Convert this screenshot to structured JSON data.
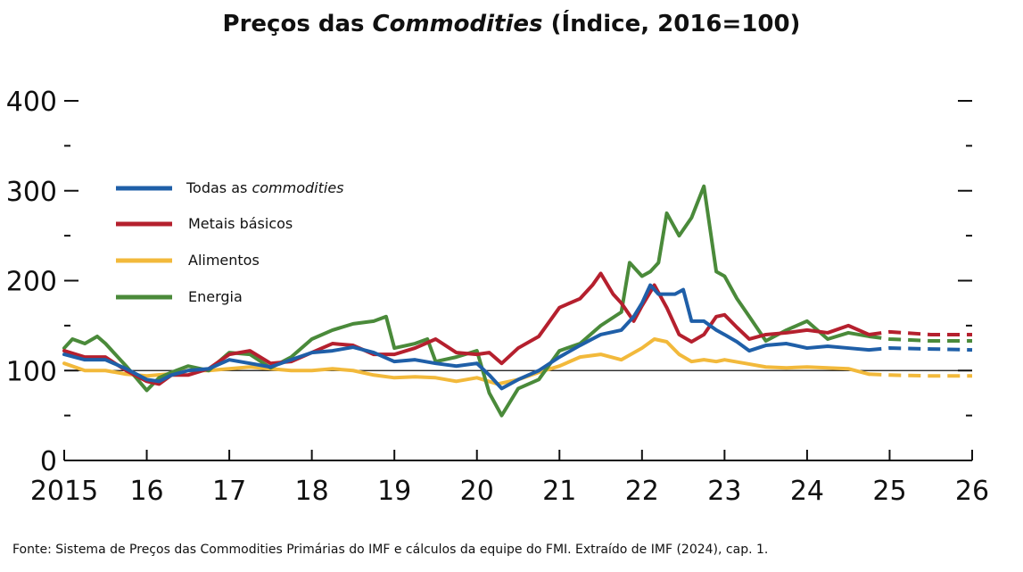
{
  "title": {
    "prefix": "Preços das ",
    "italic": "Commodities",
    "suffix": " (Índice, 2016=100)"
  },
  "source": "Fonte: Sistema de Preços das Commodities Primárias do IMF e cálculos da equipe do FMI. Extraído de IMF (2024), cap. 1.",
  "colors": {
    "todas": "#1f5fa8",
    "metais": "#b5202e",
    "alimentos": "#f2b93b",
    "energia": "#4a8a3a"
  },
  "chart_data": {
    "type": "line",
    "title": "Preços das Commodities (Índice, 2016=100)",
    "xlabel": "",
    "ylabel": "",
    "xlim": [
      2015,
      2026
    ],
    "ylim": [
      0,
      400
    ],
    "y_ticks": [
      "0",
      "100",
      "200",
      "300",
      "400"
    ],
    "x_ticks": [
      "2015",
      "16",
      "17",
      "18",
      "19",
      "20",
      "21",
      "22",
      "23",
      "24",
      "25",
      "26"
    ],
    "reference_line": 100,
    "legend_position": "upper-left",
    "projection_start": 2024.75,
    "series": [
      {
        "key": "todas",
        "name_plain": "Todas as ",
        "name_italic": "commodities",
        "name": "Todas as commodities",
        "x": [
          2015.0,
          2015.25,
          2015.5,
          2015.75,
          2016.0,
          2016.15,
          2016.3,
          2016.5,
          2016.75,
          2017.0,
          2017.25,
          2017.5,
          2017.75,
          2018.0,
          2018.25,
          2018.5,
          2018.75,
          2019.0,
          2019.25,
          2019.5,
          2019.75,
          2020.0,
          2020.15,
          2020.3,
          2020.5,
          2020.75,
          2021.0,
          2021.25,
          2021.5,
          2021.75,
          2021.9,
          2022.0,
          2022.1,
          2022.2,
          2022.3,
          2022.4,
          2022.5,
          2022.6,
          2022.75,
          2022.9,
          2023.0,
          2023.15,
          2023.3,
          2023.5,
          2023.75,
          2024.0,
          2024.25,
          2024.5,
          2024.75,
          2025.0,
          2025.5,
          2026.0
        ],
        "y": [
          118,
          112,
          112,
          102,
          90,
          88,
          95,
          100,
          102,
          112,
          108,
          104,
          112,
          120,
          122,
          126,
          120,
          110,
          112,
          108,
          105,
          108,
          95,
          80,
          90,
          100,
          115,
          128,
          140,
          145,
          160,
          175,
          195,
          185,
          185,
          185,
          190,
          155,
          155,
          145,
          140,
          132,
          122,
          128,
          130,
          125,
          127,
          125,
          123,
          125,
          124,
          123
        ],
        "projected_from_index": 48
      },
      {
        "key": "metais",
        "name": "Metais básicos",
        "x": [
          2015.0,
          2015.25,
          2015.5,
          2015.75,
          2016.0,
          2016.15,
          2016.3,
          2016.5,
          2016.75,
          2017.0,
          2017.25,
          2017.5,
          2017.75,
          2018.0,
          2018.25,
          2018.5,
          2018.75,
          2019.0,
          2019.25,
          2019.5,
          2019.75,
          2020.0,
          2020.15,
          2020.3,
          2020.5,
          2020.75,
          2021.0,
          2021.25,
          2021.4,
          2021.5,
          2021.65,
          2021.75,
          2021.9,
          2022.0,
          2022.15,
          2022.3,
          2022.45,
          2022.6,
          2022.75,
          2022.9,
          2023.0,
          2023.15,
          2023.3,
          2023.5,
          2023.75,
          2024.0,
          2024.25,
          2024.5,
          2024.75,
          2025.0,
          2025.5,
          2026.0
        ],
        "y": [
          122,
          115,
          115,
          100,
          88,
          85,
          95,
          95,
          102,
          118,
          122,
          108,
          110,
          120,
          130,
          128,
          118,
          118,
          125,
          135,
          120,
          118,
          120,
          108,
          125,
          138,
          170,
          180,
          195,
          208,
          185,
          175,
          155,
          172,
          195,
          170,
          140,
          132,
          140,
          160,
          162,
          148,
          135,
          140,
          142,
          145,
          142,
          150,
          140,
          143,
          140,
          140
        ],
        "projected_from_index": 48
      },
      {
        "key": "alimentos",
        "name": "Alimentos",
        "x": [
          2015.0,
          2015.25,
          2015.5,
          2015.75,
          2016.0,
          2016.25,
          2016.5,
          2016.75,
          2017.0,
          2017.25,
          2017.5,
          2017.75,
          2018.0,
          2018.25,
          2018.5,
          2018.75,
          2019.0,
          2019.25,
          2019.5,
          2019.75,
          2020.0,
          2020.25,
          2020.5,
          2020.75,
          2021.0,
          2021.25,
          2021.5,
          2021.75,
          2022.0,
          2022.15,
          2022.3,
          2022.45,
          2022.6,
          2022.75,
          2022.9,
          2023.0,
          2023.25,
          2023.5,
          2023.75,
          2024.0,
          2024.25,
          2024.5,
          2024.75,
          2025.0,
          2025.5,
          2026.0
        ],
        "y": [
          108,
          100,
          100,
          96,
          94,
          96,
          100,
          100,
          102,
          104,
          102,
          100,
          100,
          102,
          100,
          95,
          92,
          93,
          92,
          88,
          92,
          85,
          90,
          98,
          105,
          115,
          118,
          112,
          125,
          135,
          132,
          118,
          110,
          112,
          110,
          112,
          108,
          104,
          103,
          104,
          103,
          102,
          96,
          95,
          94,
          94
        ],
        "projected_from_index": 42
      },
      {
        "key": "energia",
        "name": "Energia",
        "x": [
          2015.0,
          2015.1,
          2015.25,
          2015.4,
          2015.5,
          2015.75,
          2016.0,
          2016.15,
          2016.3,
          2016.5,
          2016.75,
          2017.0,
          2017.25,
          2017.5,
          2017.75,
          2018.0,
          2018.25,
          2018.5,
          2018.75,
          2018.9,
          2019.0,
          2019.25,
          2019.4,
          2019.5,
          2019.75,
          2020.0,
          2020.15,
          2020.3,
          2020.5,
          2020.75,
          2021.0,
          2021.25,
          2021.5,
          2021.75,
          2021.85,
          2022.0,
          2022.1,
          2022.2,
          2022.3,
          2022.45,
          2022.6,
          2022.75,
          2022.9,
          2023.0,
          2023.15,
          2023.3,
          2023.5,
          2023.75,
          2024.0,
          2024.25,
          2024.5,
          2024.75,
          2025.0,
          2025.5,
          2026.0
        ],
        "y": [
          125,
          135,
          130,
          138,
          130,
          105,
          78,
          92,
          98,
          105,
          100,
          120,
          118,
          103,
          115,
          135,
          145,
          152,
          155,
          160,
          125,
          130,
          135,
          110,
          115,
          122,
          75,
          50,
          80,
          90,
          122,
          130,
          150,
          165,
          220,
          205,
          210,
          220,
          275,
          250,
          270,
          305,
          210,
          205,
          180,
          160,
          133,
          145,
          155,
          135,
          142,
          138,
          135,
          133,
          133
        ],
        "projected_from_index": 51
      }
    ]
  }
}
